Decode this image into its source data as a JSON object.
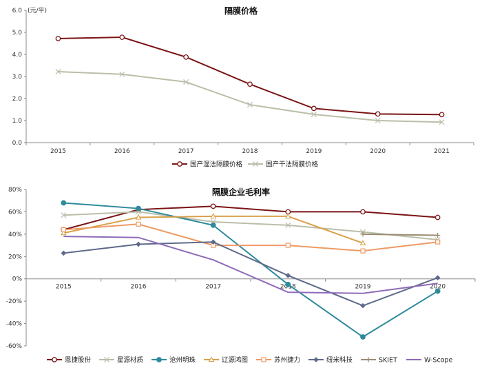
{
  "chart_data": [
    {
      "type": "line",
      "title": "隔膜价格",
      "ylabel": "(元/平)",
      "categories": [
        "2015",
        "2016",
        "2017",
        "2018",
        "2019",
        "2020",
        "2021"
      ],
      "y_ticks": [
        "0.0",
        "1.0",
        "2.0",
        "3.0",
        "4.0",
        "5.0",
        "6.0"
      ],
      "ylim": [
        0,
        6
      ],
      "legend_position": "bottom",
      "series": [
        {
          "name": "国产湿法隔膜价格",
          "color": "#7b1416",
          "marker": "circle",
          "values": [
            4.72,
            4.78,
            3.88,
            2.65,
            1.55,
            1.3,
            1.27
          ]
        },
        {
          "name": "国产干法隔膜价格",
          "color": "#b9bfa8",
          "marker": "x",
          "values": [
            3.22,
            3.1,
            2.75,
            1.72,
            1.28,
            1.0,
            0.93
          ]
        }
      ]
    },
    {
      "type": "line",
      "title": "隔膜企业毛利率",
      "categories": [
        "2015",
        "2016",
        "2017",
        "2018",
        "2019",
        "2020"
      ],
      "y_ticks": [
        "-60%",
        "-40%",
        "-20%",
        "0%",
        "20%",
        "40%",
        "60%",
        "80%"
      ],
      "ylim": [
        -60,
        80
      ],
      "legend_position": "bottom",
      "series": [
        {
          "name": "恩捷股份",
          "color": "#7b1416",
          "marker": "circle",
          "values": [
            44,
            62,
            65,
            60,
            60,
            55
          ]
        },
        {
          "name": "星源材质",
          "color": "#b9bfa8",
          "marker": "x",
          "values": [
            57,
            60,
            51,
            48,
            42,
            35
          ]
        },
        {
          "name": "沧州明珠",
          "color": "#2f8a9c",
          "marker": "dot",
          "values": [
            68,
            63,
            48,
            -5,
            -52,
            -11
          ]
        },
        {
          "name": "辽源鸿图",
          "color": "#d9a04a",
          "marker": "triangle",
          "values": [
            41,
            55,
            56,
            56,
            32,
            null
          ]
        },
        {
          "name": "苏州捷力",
          "color": "#ee9a64",
          "marker": "square",
          "values": [
            44,
            49,
            30,
            30,
            25,
            33
          ]
        },
        {
          "name": "纽米科技",
          "color": "#5e6a8a",
          "marker": "diamond",
          "values": [
            23,
            31,
            33,
            3,
            -24,
            1
          ]
        },
        {
          "name": "SKIET",
          "color": "#9a8c74",
          "marker": "plus",
          "values": [
            null,
            null,
            null,
            null,
            40,
            39
          ]
        },
        {
          "name": "W-Scope",
          "color": "#8e6bb8",
          "marker": "none",
          "values": [
            38,
            37,
            17,
            -12,
            -13,
            -4
          ]
        }
      ]
    }
  ]
}
